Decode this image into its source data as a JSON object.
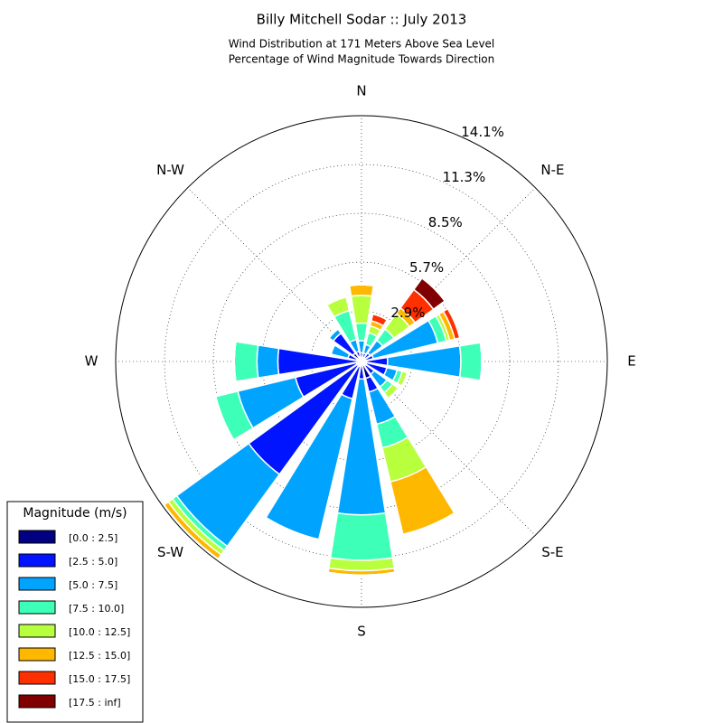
{
  "chart_data": {
    "type": "windrose",
    "title": "Billy Mitchell Sodar :: July 2013",
    "subtitle": [
      "Wind Distribution at 171 Meters Above Sea Level",
      "Percentage of Wind Magnitude Towards Direction"
    ],
    "legend_title": "Magnitude (m/s)",
    "legend": "lower left",
    "grid": true,
    "x": [
      0,
      22.5,
      45,
      67.5,
      90,
      112.5,
      135,
      157.5,
      180,
      202.5,
      225,
      247.5,
      270,
      292.5,
      315,
      337.5
    ],
    "xticks": [
      {
        "value": 0,
        "label": "N"
      },
      {
        "value": 45,
        "label": "N-E"
      },
      {
        "value": 90,
        "label": "E"
      },
      {
        "value": 135,
        "label": "S-E"
      },
      {
        "value": 180,
        "label": "S"
      },
      {
        "value": 225,
        "label": "S-W"
      },
      {
        "value": 270,
        "label": "W"
      },
      {
        "value": 315,
        "label": "N-W"
      }
    ],
    "ylim": [
      0,
      14.1
    ],
    "yticks": [
      {
        "value": 2.9,
        "label": "2.9%"
      },
      {
        "value": 5.7,
        "label": "5.7%"
      },
      {
        "value": 8.5,
        "label": "8.5%"
      },
      {
        "value": 11.3,
        "label": "11.3%"
      },
      {
        "value": 14.1,
        "label": "14.1%"
      }
    ],
    "series": [
      {
        "name": "[0.0 : 2.5]",
        "color": "#000080",
        "values": [
          0.2,
          0.2,
          0.2,
          0.2,
          0.3,
          0.3,
          0.3,
          1.0,
          0.2,
          0.3,
          0.3,
          0.3,
          0.2,
          0.3,
          0.6,
          0.3
        ]
      },
      {
        "name": "[2.5 : 5.0]",
        "color": "#0014ff",
        "values": [
          0.3,
          0.3,
          0.4,
          0.5,
          1.2,
          1.2,
          0.6,
          0.8,
          0.8,
          1.9,
          7.7,
          3.6,
          4.6,
          0.5,
          1.4,
          0.3
        ]
      },
      {
        "name": "[5.0 : 7.5]",
        "color": "#00a4ff",
        "values": [
          0.7,
          0.5,
          0.9,
          3.8,
          4.2,
          0.6,
          0.9,
          1.9,
          7.8,
          8.3,
          5.1,
          3.4,
          1.2,
          1.0,
          0.3,
          0.7
        ]
      },
      {
        "name": "[7.5 : 10.0]",
        "color": "#3effb8",
        "values": [
          1.0,
          0.7,
          0.8,
          0.5,
          1.2,
          0.3,
          0.4,
          1.4,
          2.6,
          0,
          0.3,
          1.3,
          1.3,
          0,
          0,
          1.7
        ]
      },
      {
        "name": "[10.0 : 12.5]",
        "color": "#b8ff3e",
        "values": [
          1.6,
          0.4,
          1.1,
          0.2,
          0,
          0.3,
          0.4,
          2.0,
          0.6,
          0,
          0.3,
          0,
          0,
          0,
          0,
          0.8
        ]
      },
      {
        "name": "[12.5 : 15.0]",
        "color": "#ffb800",
        "values": [
          0.6,
          0.3,
          0.4,
          0.3,
          0,
          0,
          0,
          3.1,
          0.25,
          0,
          0.3,
          0,
          0,
          0,
          0,
          0
        ]
      },
      {
        "name": "[15.0 : 17.5]",
        "color": "#ff3000",
        "values": [
          0,
          0.4,
          1.3,
          0.3,
          0,
          0,
          0,
          0,
          0,
          0,
          0,
          0,
          0,
          0,
          0,
          0
        ]
      },
      {
        "name": "[17.5 : inf]",
        "color": "#800000",
        "values": [
          0,
          0,
          0.8,
          0,
          0,
          0,
          0,
          0,
          0,
          0,
          0,
          0,
          0,
          0,
          0,
          0
        ]
      }
    ]
  }
}
